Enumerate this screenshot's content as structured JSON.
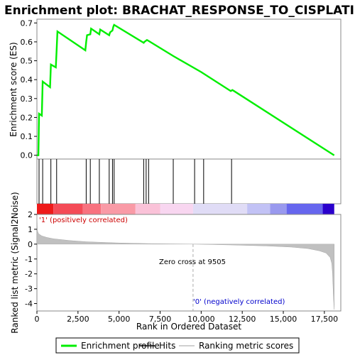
{
  "chart_data": {
    "type": "line",
    "title": "Enrichment plot: BRACHAT_RESPONSE_TO_CISPLATIN",
    "top_panel": {
      "ylabel": "Enrichment score (ES)",
      "ylim": [
        -0.02,
        0.72
      ],
      "yticks": [
        "0.0",
        "0.1",
        "0.2",
        "0.3",
        "0.4",
        "0.5",
        "0.6",
        "0.7"
      ],
      "series": [
        {
          "name": "Enrichment profile",
          "color": "#00ee00",
          "x": [
            0,
            90,
            130,
            300,
            350,
            800,
            850,
            1150,
            1200,
            1250,
            2950,
            3000,
            3050,
            3250,
            3300,
            3800,
            3850,
            4400,
            4450,
            4600,
            4650,
            4700,
            6500,
            6550,
            6700,
            6800,
            8300,
            10000,
            11800,
            11900,
            12000,
            18100
          ],
          "y": [
            0.0,
            0.0,
            0.22,
            0.21,
            0.39,
            0.36,
            0.48,
            0.465,
            0.56,
            0.655,
            0.555,
            0.6,
            0.635,
            0.64,
            0.67,
            0.64,
            0.665,
            0.635,
            0.65,
            0.66,
            0.68,
            0.69,
            0.595,
            0.6,
            0.61,
            0.605,
            0.525,
            0.44,
            0.34,
            0.345,
            0.34,
            0.0
          ]
        }
      ]
    },
    "hits": {
      "name": "Hits",
      "positions": [
        130,
        350,
        850,
        1200,
        3000,
        3250,
        3800,
        4400,
        4600,
        4700,
        6500,
        6650,
        6800,
        8300,
        9600,
        10150,
        11850
      ]
    },
    "bottom_panel": {
      "ylabel": "Ranked list metric (Signal2Noise)",
      "ylim": [
        -4.5,
        2
      ],
      "yticks": [
        "2",
        "1",
        "0",
        "-1",
        "-2",
        "-3",
        "-4"
      ],
      "series": {
        "name": "Ranking metric scores",
        "color": "#c0c0c0",
        "x": [
          0,
          30,
          100,
          300,
          600,
          1000,
          2000,
          3000,
          5000,
          7000,
          9505,
          12000,
          14000,
          15500,
          16500,
          17200,
          17600,
          17850,
          17950,
          18000,
          18050,
          18100
        ],
        "y": [
          2.0,
          0.9,
          0.7,
          0.55,
          0.45,
          0.36,
          0.24,
          0.16,
          0.08,
          0.03,
          0.0,
          -0.06,
          -0.12,
          -0.2,
          -0.3,
          -0.45,
          -0.6,
          -0.9,
          -1.3,
          -2.0,
          -3.5,
          -4.4
        ]
      },
      "zero_cross_label": "Zero cross at 9505",
      "zero_cross": 9505,
      "pos_label": "'1' (positively correlated)",
      "neg_label": "'0' (negatively correlated)"
    },
    "xlabel": "Rank in Ordered Dataset",
    "xlim": [
      0,
      18500
    ],
    "xticks": [
      "0",
      "2,500",
      "5,000",
      "7,500",
      "10,000",
      "12,500",
      "15,000",
      "17,500"
    ],
    "xtick_values": [
      0,
      2500,
      5000,
      7500,
      10000,
      12500,
      15000,
      17500
    ],
    "heat_segments": [
      {
        "to": 1000,
        "color": "#ee1a1a"
      },
      {
        "to": 2800,
        "color": "#f44b57"
      },
      {
        "to": 3900,
        "color": "#f8727f"
      },
      {
        "to": 6000,
        "color": "#f99aa6"
      },
      {
        "to": 7500,
        "color": "#fac2d8"
      },
      {
        "to": 9505,
        "color": "#f8d6f0"
      },
      {
        "to": 12800,
        "color": "#e0dcf6"
      },
      {
        "to": 14200,
        "color": "#c2c2f5"
      },
      {
        "to": 15200,
        "color": "#9999ee"
      },
      {
        "to": 17400,
        "color": "#6666ee"
      },
      {
        "to": 18100,
        "color": "#2a00cc"
      }
    ],
    "legend": [
      {
        "label": "Enrichment profile",
        "color": "#00ee00",
        "kind": "thick-line"
      },
      {
        "label": "Hits",
        "color": "#000000",
        "kind": "line"
      },
      {
        "label": "Ranking metric scores",
        "color": "#c0c0c0",
        "kind": "line"
      }
    ]
  }
}
